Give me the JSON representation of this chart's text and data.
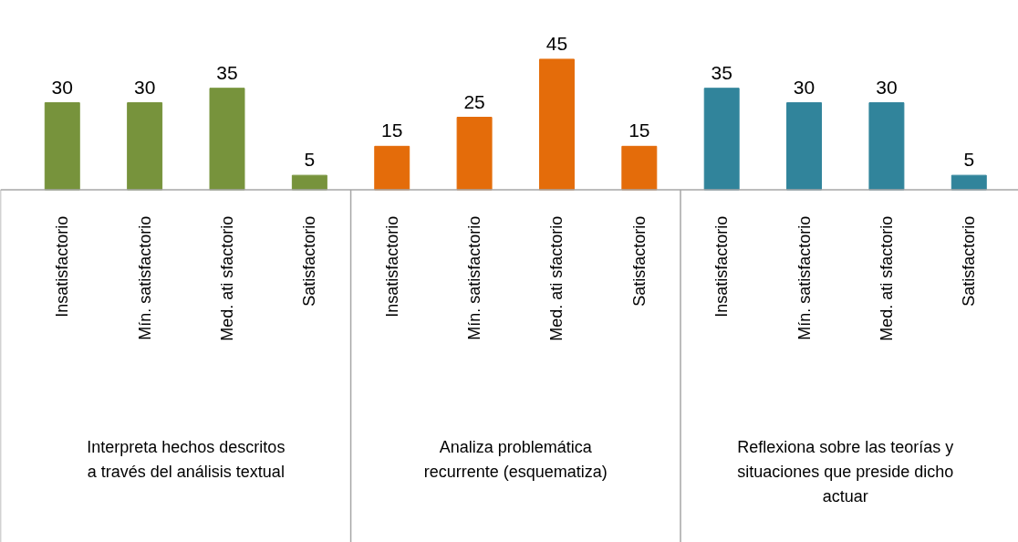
{
  "chart_data": {
    "type": "bar",
    "categories": [
      "Insatisfactorio",
      "Mín. satisfactorio",
      "Med. ati sfactorio",
      "Satisfactorio",
      "Insatisfactorio",
      "Mín. satisfactorio",
      "Med. ati sfactorio",
      "Satisfactorio",
      "Insatisfactorio",
      "Mín. satisfactorio",
      "Med. ati sfactorio",
      "Satisfactorio"
    ],
    "values": [
      30,
      30,
      35,
      5,
      15,
      25,
      45,
      15,
      35,
      30,
      30,
      5
    ],
    "colors": [
      "#77933c",
      "#77933c",
      "#77933c",
      "#77933c",
      "#e46c0a",
      "#e46c0a",
      "#e46c0a",
      "#e46c0a",
      "#31849b",
      "#31849b",
      "#31849b",
      "#31849b"
    ],
    "data_labels": true,
    "annotations": [
      "Interpreta hechos descritos\na través del análisis textual",
      "Analiza problemática\nrecurrente (esquematiza)",
      "Reflexiona sobre las teorías y\nsituaciones que preside dicho\nactuar"
    ]
  }
}
